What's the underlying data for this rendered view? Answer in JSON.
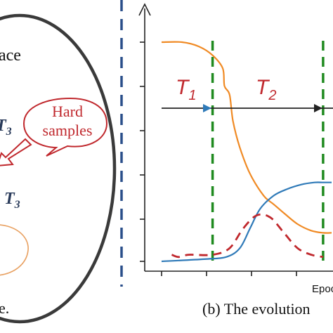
{
  "left_panel": {
    "text_space_fragment": "ace",
    "bubble_line1": "Hard",
    "bubble_line2": "samples",
    "label_t3_upper": "T",
    "label_t3_upper_sub": "3",
    "label_t3_lower_prefix": ",",
    "label_t3_lower": "T",
    "label_t3_lower_sub": "3",
    "caption_fragment": "e."
  },
  "right_panel": {
    "phase1_label": "T",
    "phase1_sub": "1",
    "phase2_label": "T",
    "phase2_sub": "2",
    "x_axis_label_fragment": "Epoc",
    "caption_fragment": "(b) The evolution"
  },
  "colors": {
    "orange_curve": "#f08a24",
    "blue_curve": "#2f7ab8",
    "red_dashed_curve": "#c0282d",
    "green_dashed_line": "#1f8a1f",
    "divider_blue": "#2a4f8a",
    "red_text": "#c0282d",
    "dark_text": "#2a3b5a"
  },
  "chart_data": {
    "type": "line",
    "xlabel": "Epoc",
    "ylabel": "",
    "grid": false,
    "phases": [
      {
        "name": "T1",
        "start": 0.0,
        "end": 0.3
      },
      {
        "name": "T2",
        "start": 0.3,
        "end": 0.95
      }
    ],
    "series": [
      {
        "style": "solid-orange",
        "x": [
          0.0,
          0.12,
          0.22,
          0.3,
          0.36,
          0.37,
          0.4,
          0.42,
          0.46,
          0.52,
          0.6,
          0.66,
          0.72,
          0.8,
          0.88,
          0.95,
          1.0
        ],
        "y": [
          1.0,
          1.0,
          0.98,
          0.94,
          0.88,
          0.8,
          0.76,
          0.64,
          0.52,
          0.4,
          0.3,
          0.26,
          0.22,
          0.17,
          0.14,
          0.13,
          0.13
        ]
      },
      {
        "style": "solid-blue",
        "x": [
          0.0,
          0.25,
          0.38,
          0.46,
          0.52,
          0.58,
          0.66,
          0.74,
          0.82,
          0.9,
          0.95,
          1.0
        ],
        "y": [
          0.0,
          0.01,
          0.02,
          0.06,
          0.15,
          0.24,
          0.3,
          0.33,
          0.35,
          0.36,
          0.36,
          0.36
        ]
      },
      {
        "style": "dashed-red",
        "x": [
          0.06,
          0.1,
          0.16,
          0.3,
          0.4,
          0.48,
          0.56,
          0.64,
          0.72,
          0.8,
          0.88,
          0.95
        ],
        "y": [
          0.03,
          0.02,
          0.03,
          0.03,
          0.06,
          0.15,
          0.21,
          0.2,
          0.13,
          0.06,
          0.03,
          0.02
        ]
      }
    ],
    "vertical_markers": [
      0.3,
      0.95
    ]
  }
}
